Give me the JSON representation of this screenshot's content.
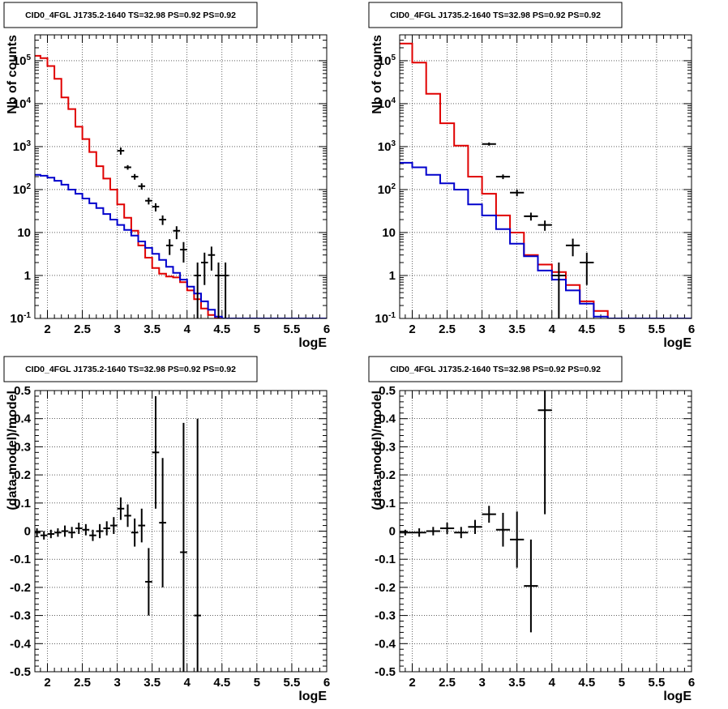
{
  "chart_data": [
    {
      "type": "line",
      "title": "CID0_4FGL J1735.2-1640 TS=32.98 PS=0.92 PS=0.92",
      "xlabel": "logE",
      "ylabel": "Nb of counts",
      "log_y": true,
      "xlim": [
        1.82,
        6.0
      ],
      "ylim": [
        0.1,
        400000
      ],
      "grid": true,
      "x_ticks": [
        "2",
        "2.5",
        "3",
        "3.5",
        "4",
        "4.5",
        "5",
        "5.5",
        "6"
      ],
      "y_ticks": [
        "10^-1",
        "1",
        "10",
        "10^2",
        "10^3",
        "10^4",
        "10^5"
      ],
      "bin_width": 0.1,
      "bin_edges_start": 1.8,
      "series": [
        {
          "color": "#e00000",
          "style": "hist",
          "values": [
            130000,
            115000,
            75000,
            38000,
            14000,
            7500,
            2900,
            1500,
            750,
            350,
            180,
            100,
            45,
            22,
            11,
            5,
            2.6,
            1.5,
            1.1,
            0.95,
            0.9,
            0.7,
            0.45,
            0.28,
            0.17,
            0.12,
            0.1,
            0.1,
            0.1,
            0.1,
            0.1,
            0.1,
            0.1,
            0.1,
            0.1,
            0.1,
            0.1,
            0.1,
            0.1,
            0.1,
            0.1,
            0.1
          ]
        },
        {
          "color": "#0000cc",
          "style": "hist",
          "values": [
            220,
            210,
            190,
            160,
            130,
            100,
            80,
            62,
            48,
            37,
            27,
            20,
            15,
            11.5,
            8.5,
            6.2,
            4.4,
            3.2,
            2.3,
            1.6,
            1.15,
            0.8,
            0.55,
            0.38,
            0.25,
            0.16,
            0.11,
            0.1,
            0.1,
            0.1,
            0.1,
            0.1,
            0.1,
            0.1,
            0.1,
            0.1,
            0.1,
            0.1,
            0.1,
            0.1,
            0.1,
            0.1
          ]
        },
        {
          "color": "#000000",
          "style": "points",
          "points": [
            {
              "x": 3.05,
              "y": 800,
              "ylo": 650,
              "yhi": 950
            },
            {
              "x": 3.15,
              "y": 330,
              "ylo": 290,
              "yhi": 370
            },
            {
              "x": 3.25,
              "y": 200,
              "ylo": 170,
              "yhi": 230
            },
            {
              "x": 3.35,
              "y": 120,
              "ylo": 100,
              "yhi": 140
            },
            {
              "x": 3.45,
              "y": 55,
              "ylo": 45,
              "yhi": 65
            },
            {
              "x": 3.55,
              "y": 40,
              "ylo": 31,
              "yhi": 48
            },
            {
              "x": 3.65,
              "y": 20,
              "ylo": 15,
              "yhi": 25
            },
            {
              "x": 3.75,
              "y": 5,
              "ylo": 3,
              "yhi": 7
            },
            {
              "x": 3.85,
              "y": 11,
              "ylo": 7,
              "yhi": 14
            },
            {
              "x": 3.95,
              "y": 4,
              "ylo": 2,
              "yhi": 6
            },
            {
              "x": 4.15,
              "y": 1,
              "ylo": 0.1,
              "yhi": 2
            },
            {
              "x": 4.25,
              "y": 2,
              "ylo": 0.6,
              "yhi": 3.4
            },
            {
              "x": 4.35,
              "y": 3,
              "ylo": 1.3,
              "yhi": 4.7
            },
            {
              "x": 4.45,
              "y": 1,
              "ylo": 0.1,
              "yhi": 2
            },
            {
              "x": 4.55,
              "y": 1,
              "ylo": 0.1,
              "yhi": 2
            }
          ]
        }
      ]
    },
    {
      "type": "line",
      "title": "CID0_4FGL J1735.2-1640 TS=32.98 PS=0.92 PS=0.92",
      "xlabel": "logE",
      "ylabel": "Nb of counts",
      "log_y": true,
      "xlim": [
        1.82,
        6.0
      ],
      "ylim": [
        0.1,
        400000
      ],
      "grid": true,
      "x_ticks": [
        "2",
        "2.5",
        "3",
        "3.5",
        "4",
        "4.5",
        "5",
        "5.5",
        "6"
      ],
      "y_ticks": [
        "10^-1",
        "1",
        "10",
        "10^2",
        "10^3",
        "10^4",
        "10^5"
      ],
      "bin_width": 0.2,
      "bin_edges_start": 1.8,
      "series": [
        {
          "color": "#e00000",
          "style": "hist",
          "values": [
            250000,
            90000,
            17000,
            3500,
            1050,
            200,
            80,
            25,
            10,
            3,
            1.8,
            1.2,
            0.6,
            0.25,
            0.15,
            0.1,
            0.1,
            0.1,
            0.1,
            0.1,
            0.1
          ]
        },
        {
          "color": "#0000cc",
          "style": "hist",
          "values": [
            420,
            330,
            220,
            140,
            100,
            45,
            25,
            12,
            5.5,
            2.8,
            1.3,
            0.8,
            0.45,
            0.22,
            0.11,
            0.1,
            0.1,
            0.1,
            0.1,
            0.1,
            0.1
          ]
        },
        {
          "color": "#000000",
          "style": "points",
          "points": [
            {
              "x": 3.1,
              "y": 1150,
              "ylo": 1050,
              "yhi": 1250
            },
            {
              "x": 3.3,
              "y": 200,
              "ylo": 175,
              "yhi": 225
            },
            {
              "x": 3.5,
              "y": 85,
              "ylo": 70,
              "yhi": 100
            },
            {
              "x": 3.7,
              "y": 24,
              "ylo": 19,
              "yhi": 29
            },
            {
              "x": 3.9,
              "y": 15,
              "ylo": 11,
              "yhi": 19
            },
            {
              "x": 4.1,
              "y": 1,
              "ylo": 0.1,
              "yhi": 2
            },
            {
              "x": 4.3,
              "y": 5,
              "ylo": 2.8,
              "yhi": 7.2
            },
            {
              "x": 4.5,
              "y": 2,
              "ylo": 0.6,
              "yhi": 3.4
            }
          ]
        }
      ]
    },
    {
      "type": "scatter",
      "title": "CID0_4FGL J1735.2-1640 TS=32.98 PS=0.92 PS=0.92",
      "xlabel": "logE",
      "ylabel": "(data-model)/model",
      "xlim": [
        1.82,
        6.0
      ],
      "ylim": [
        -0.5,
        0.5
      ],
      "grid": true,
      "x_ticks": [
        "2",
        "2.5",
        "3",
        "3.5",
        "4",
        "4.5",
        "5",
        "5.5",
        "6"
      ],
      "y_ticks": [
        "-0.5",
        "-0.4",
        "-0.3",
        "-0.2",
        "-0.1",
        "0",
        "0.1",
        "0.2",
        "0.3",
        "0.4",
        "0.5"
      ],
      "bin_width": 0.1,
      "points": [
        {
          "x": 1.85,
          "y": -0.005,
          "err": 0.015
        },
        {
          "x": 1.95,
          "y": -0.015,
          "err": 0.015
        },
        {
          "x": 2.05,
          "y": -0.01,
          "err": 0.015
        },
        {
          "x": 2.15,
          "y": -0.005,
          "err": 0.015
        },
        {
          "x": 2.25,
          "y": 0.0,
          "err": 0.02
        },
        {
          "x": 2.35,
          "y": -0.005,
          "err": 0.02
        },
        {
          "x": 2.45,
          "y": 0.01,
          "err": 0.02
        },
        {
          "x": 2.55,
          "y": 0.005,
          "err": 0.02
        },
        {
          "x": 2.65,
          "y": -0.015,
          "err": 0.02
        },
        {
          "x": 2.75,
          "y": 0.0,
          "err": 0.025
        },
        {
          "x": 2.85,
          "y": 0.01,
          "err": 0.025
        },
        {
          "x": 2.95,
          "y": 0.02,
          "err": 0.03
        },
        {
          "x": 3.05,
          "y": 0.08,
          "err": 0.04
        },
        {
          "x": 3.15,
          "y": 0.055,
          "err": 0.04
        },
        {
          "x": 3.25,
          "y": -0.005,
          "err": 0.05
        },
        {
          "x": 3.35,
          "y": 0.02,
          "err": 0.06
        },
        {
          "x": 3.45,
          "y": -0.18,
          "err": 0.12
        },
        {
          "x": 3.55,
          "y": 0.28,
          "err": 0.2
        },
        {
          "x": 3.65,
          "y": 0.03,
          "err": 0.23
        },
        {
          "x": 3.95,
          "y": -0.075,
          "err": 0.46
        },
        {
          "x": 4.15,
          "y": -0.3,
          "err": 0.7
        }
      ]
    },
    {
      "type": "scatter",
      "title": "CID0_4FGL J1735.2-1640 TS=32.98 PS=0.92 PS=0.92",
      "xlabel": "logE",
      "ylabel": "(data-model)/model",
      "xlim": [
        1.82,
        6.0
      ],
      "ylim": [
        -0.5,
        0.5
      ],
      "grid": true,
      "x_ticks": [
        "2",
        "2.5",
        "3",
        "3.5",
        "4",
        "4.5",
        "5",
        "5.5",
        "6"
      ],
      "y_ticks": [
        "-0.5",
        "-0.4",
        "-0.3",
        "-0.2",
        "-0.1",
        "0",
        "0.1",
        "0.2",
        "0.3",
        "0.4",
        "0.5"
      ],
      "bin_width": 0.2,
      "points": [
        {
          "x": 1.9,
          "y": -0.005,
          "err": 0.01
        },
        {
          "x": 2.1,
          "y": -0.005,
          "err": 0.015
        },
        {
          "x": 2.3,
          "y": 0.0,
          "err": 0.015
        },
        {
          "x": 2.5,
          "y": 0.01,
          "err": 0.02
        },
        {
          "x": 2.7,
          "y": -0.005,
          "err": 0.02
        },
        {
          "x": 2.9,
          "y": 0.015,
          "err": 0.025
        },
        {
          "x": 3.1,
          "y": 0.06,
          "err": 0.03
        },
        {
          "x": 3.3,
          "y": 0.005,
          "err": 0.06
        },
        {
          "x": 3.5,
          "y": -0.03,
          "err": 0.1
        },
        {
          "x": 3.7,
          "y": -0.195,
          "err": 0.165
        },
        {
          "x": 3.9,
          "y": 0.43,
          "err": 0.37
        }
      ]
    }
  ]
}
